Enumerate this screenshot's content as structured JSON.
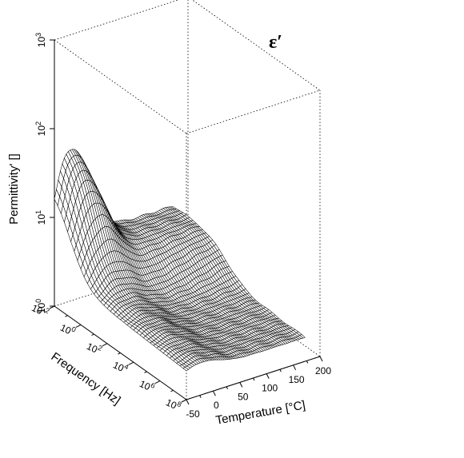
{
  "chart_data": {
    "type": "surface",
    "title": "",
    "annotation": "ε′",
    "xlabel": "Temperature [°C]",
    "ylabel": "Frequency [Hz]",
    "zlabel": "Permittivity' []",
    "x_range": [
      -50,
      200
    ],
    "x_ticks": [
      "-50",
      "0",
      "50",
      "100",
      "150",
      "200"
    ],
    "y_log_range": [
      -2,
      8
    ],
    "y_ticks": [
      {
        "base": "10",
        "exp": "-2"
      },
      {
        "base": "10",
        "exp": "0"
      },
      {
        "base": "10",
        "exp": "2"
      },
      {
        "base": "10",
        "exp": "4"
      },
      {
        "base": "10",
        "exp": "6"
      },
      {
        "base": "10",
        "exp": "8"
      }
    ],
    "z_log_range": [
      0,
      3
    ],
    "z_ticks": [
      {
        "base": "10",
        "exp": "0"
      },
      {
        "base": "10",
        "exp": "1"
      },
      {
        "base": "10",
        "exp": "2"
      },
      {
        "base": "10",
        "exp": "3"
      }
    ],
    "y_scale": "log",
    "z_scale": "log",
    "style": "wireframe mesh",
    "line_color": "#000000",
    "grid": false,
    "bounding_box": "dotted",
    "surface_model": {
      "description": "permittivity vs temperature and log-frequency",
      "low_freq_peak_permittivity": 100,
      "low_freq_edge_permittivity": 10,
      "high_temp_plateau_permittivity": 5,
      "high_freq_permittivity": 1.7
    }
  }
}
